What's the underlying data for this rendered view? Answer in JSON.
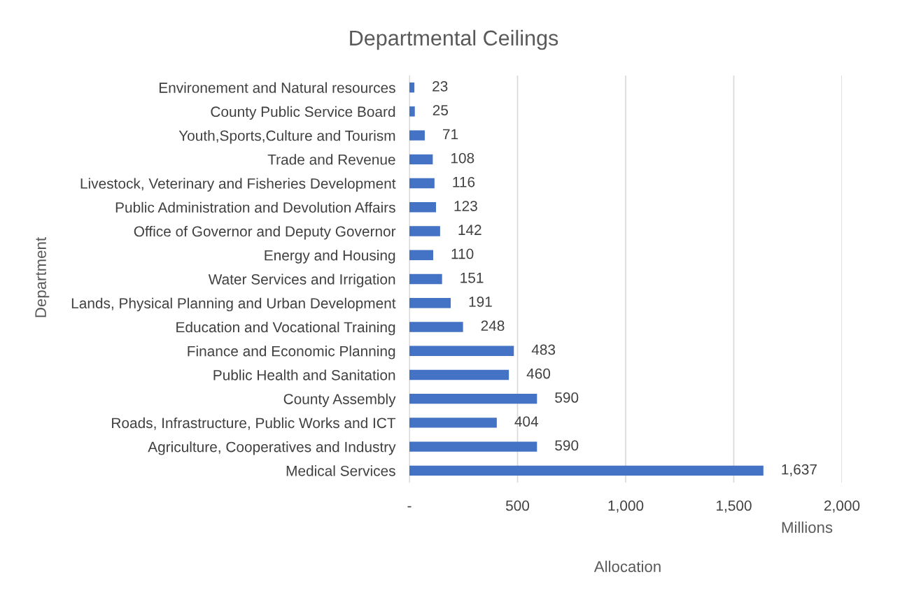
{
  "chart_data": {
    "type": "bar",
    "orientation": "horizontal",
    "title": "Departmental Ceilings",
    "xlabel": "Allocation",
    "ylabel": "Department",
    "categories": [
      "Environement and Natural resources",
      "County Public Service Board",
      "Youth,Sports,Culture and Tourism",
      "Trade and Revenue",
      "Livestock, Veterinary and Fisheries Development",
      "Public Administration and Devolution Affairs",
      "Office of Governor and Deputy Governor",
      "Energy and Housing",
      "Water Services and Irrigation",
      "Lands, Physical Planning and Urban Development",
      "Education and Vocational Training",
      "Finance and Economic Planning",
      "Public Health and Sanitation",
      "County Assembly",
      "Roads, Infrastructure, Public Works and ICT",
      "Agriculture, Cooperatives and Industry",
      "Medical Services"
    ],
    "values": [
      23,
      25,
      71,
      108,
      116,
      123,
      142,
      110,
      151,
      191,
      248,
      483,
      460,
      590,
      404,
      590,
      1637
    ],
    "value_labels": [
      "23",
      "25",
      "71",
      "108",
      "116",
      "123",
      "142",
      "110",
      "151",
      "191",
      "248",
      "483",
      "460",
      "590",
      "404",
      "590",
      "1,637"
    ],
    "color": "#4472c4",
    "xlim": [
      0,
      2000
    ],
    "xticks": [
      {
        "value": 0,
        "label": "-"
      },
      500,
      {
        "value": 1000,
        "label": "1,000"
      },
      {
        "value": 1500,
        "label": "1,500"
      },
      {
        "value": 2000,
        "label": "2,000"
      }
    ],
    "grid": "x",
    "legend": false,
    "annotations": [
      "Millions"
    ]
  }
}
